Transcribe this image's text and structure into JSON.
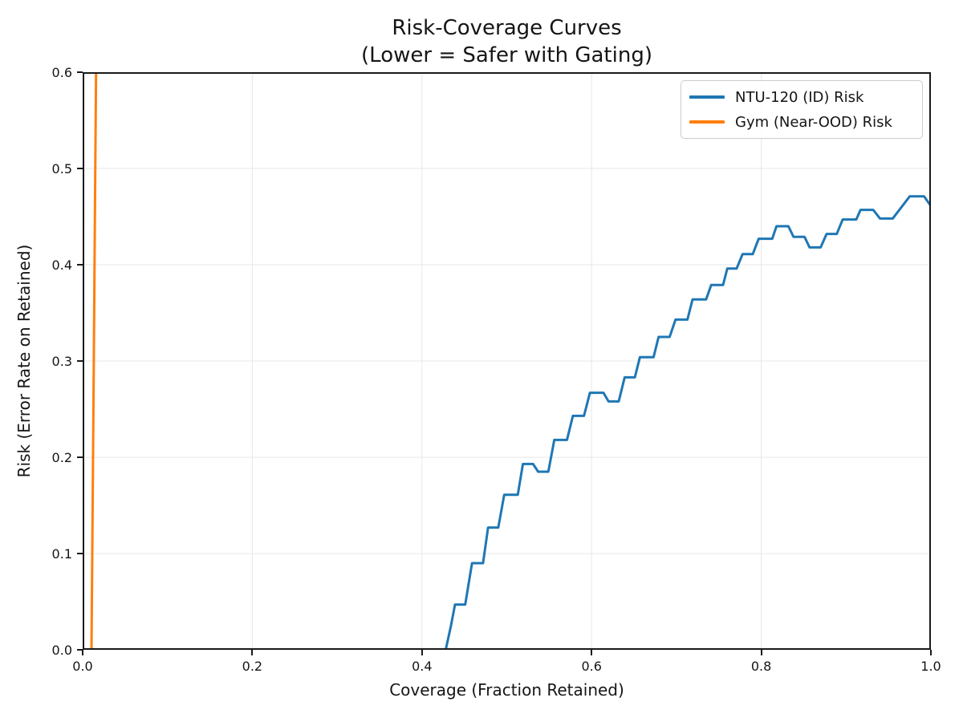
{
  "figure": {
    "title_lines": [
      "Risk-Coverage Curves",
      "(Lower = Safer with Gating)"
    ]
  },
  "colors": {
    "spine": "#1a1a1a",
    "grid": "#e7e7e7",
    "background": "#ffffff",
    "text": "#151515",
    "blue_series": "#1f77b4",
    "orange_series": "#ff7f0e"
  },
  "chart_data": {
    "type": "line",
    "title": "Risk-Coverage Curves (Lower = Safer with Gating)",
    "xlabel": "Coverage (Fraction Retained)",
    "ylabel": "Risk (Error Rate on Retained)",
    "xlim": [
      0.0,
      1.0
    ],
    "ylim": [
      0.0,
      0.6
    ],
    "xticks": [
      0.0,
      0.2,
      0.4,
      0.6,
      0.8,
      1.0
    ],
    "xtick_labels": [
      "0.0",
      "0.2",
      "0.4",
      "0.6",
      "0.8",
      "1.0"
    ],
    "yticks": [
      0.0,
      0.1,
      0.2,
      0.3,
      0.4,
      0.5,
      0.6
    ],
    "ytick_labels": [
      "0.0",
      "0.1",
      "0.2",
      "0.3",
      "0.4",
      "0.5",
      "0.6"
    ],
    "grid": true,
    "legend_position": "upper right",
    "series": [
      {
        "name": "NTU-120 (ID) Risk",
        "color": "#1f77b4",
        "points": [
          [
            0.0,
            0.0
          ],
          [
            0.428,
            0.0
          ],
          [
            0.434,
            0.024
          ],
          [
            0.439,
            0.047
          ],
          [
            0.451,
            0.047
          ],
          [
            0.459,
            0.09
          ],
          [
            0.472,
            0.09
          ],
          [
            0.478,
            0.127
          ],
          [
            0.49,
            0.127
          ],
          [
            0.497,
            0.161
          ],
          [
            0.513,
            0.161
          ],
          [
            0.519,
            0.193
          ],
          [
            0.531,
            0.193
          ],
          [
            0.537,
            0.185
          ],
          [
            0.549,
            0.185
          ],
          [
            0.556,
            0.218
          ],
          [
            0.571,
            0.218
          ],
          [
            0.578,
            0.243
          ],
          [
            0.591,
            0.243
          ],
          [
            0.598,
            0.267
          ],
          [
            0.614,
            0.267
          ],
          [
            0.62,
            0.258
          ],
          [
            0.632,
            0.258
          ],
          [
            0.639,
            0.283
          ],
          [
            0.651,
            0.283
          ],
          [
            0.657,
            0.304
          ],
          [
            0.673,
            0.304
          ],
          [
            0.679,
            0.325
          ],
          [
            0.692,
            0.325
          ],
          [
            0.699,
            0.343
          ],
          [
            0.713,
            0.343
          ],
          [
            0.719,
            0.364
          ],
          [
            0.735,
            0.364
          ],
          [
            0.741,
            0.379
          ],
          [
            0.755,
            0.379
          ],
          [
            0.76,
            0.396
          ],
          [
            0.771,
            0.396
          ],
          [
            0.778,
            0.411
          ],
          [
            0.79,
            0.411
          ],
          [
            0.797,
            0.427
          ],
          [
            0.813,
            0.427
          ],
          [
            0.818,
            0.44
          ],
          [
            0.832,
            0.44
          ],
          [
            0.838,
            0.429
          ],
          [
            0.851,
            0.429
          ],
          [
            0.857,
            0.418
          ],
          [
            0.87,
            0.418
          ],
          [
            0.877,
            0.432
          ],
          [
            0.889,
            0.432
          ],
          [
            0.896,
            0.447
          ],
          [
            0.912,
            0.447
          ],
          [
            0.917,
            0.457
          ],
          [
            0.932,
            0.457
          ],
          [
            0.94,
            0.448
          ],
          [
            0.955,
            0.448
          ],
          [
            0.975,
            0.471
          ],
          [
            0.992,
            0.471
          ],
          [
            1.0,
            0.461
          ]
        ]
      },
      {
        "name": "Gym (Near-OOD) Risk",
        "color": "#ff7f0e",
        "clipped_at_top": true,
        "points": [
          [
            0.0104,
            0.0
          ],
          [
            0.0118,
            0.155
          ],
          [
            0.0132,
            0.31
          ],
          [
            0.0146,
            0.465
          ],
          [
            0.016,
            0.62
          ]
        ]
      }
    ]
  }
}
